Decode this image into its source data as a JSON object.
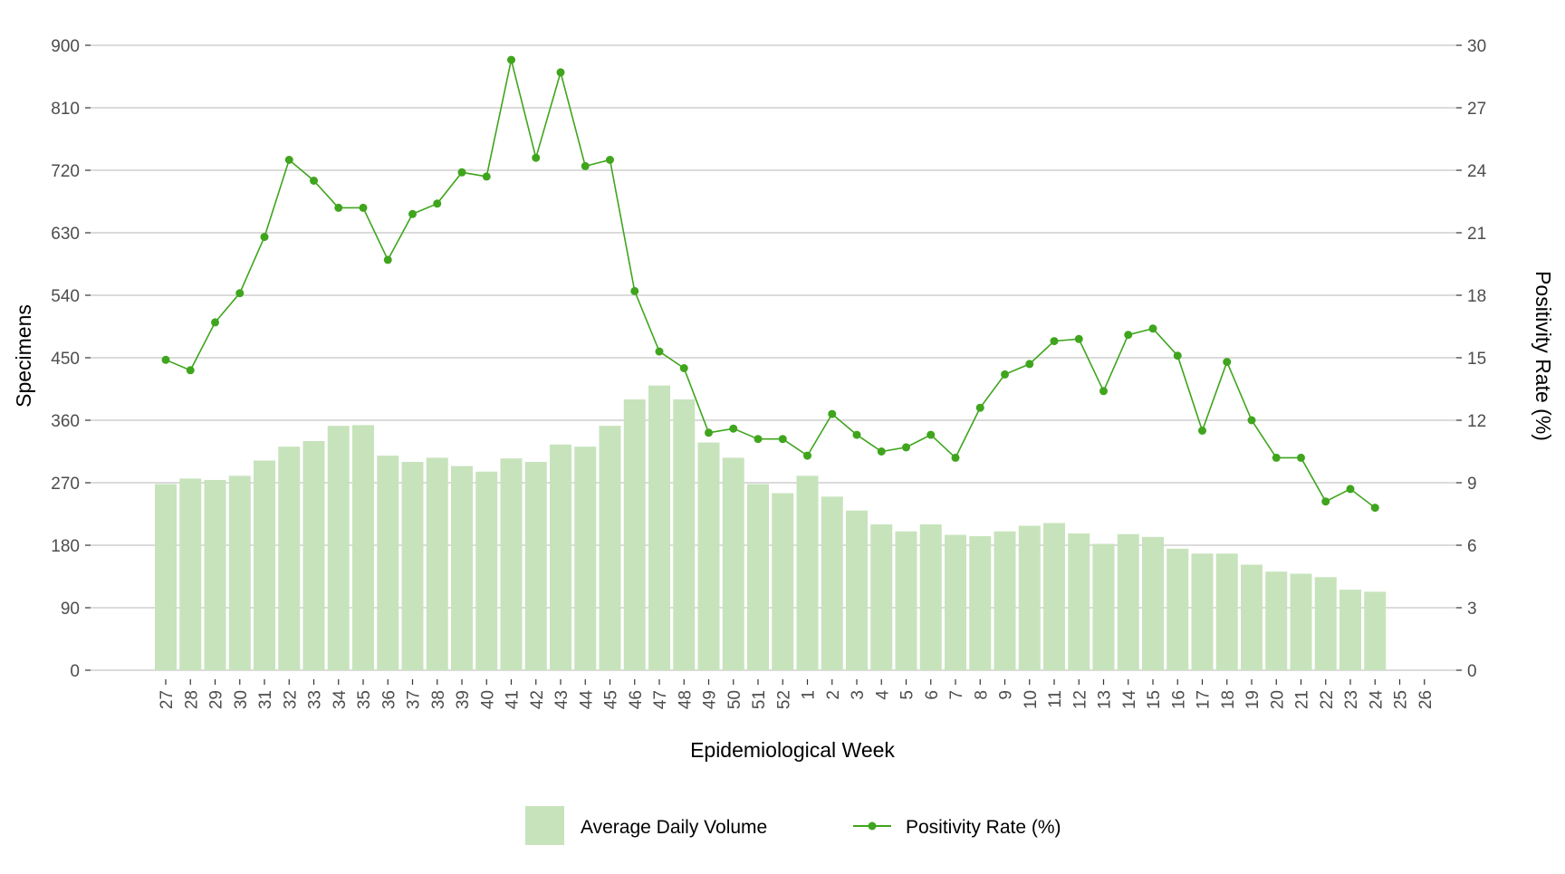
{
  "chart_data": {
    "type": "bar+line",
    "xlabel": "Epidemiological Week",
    "ylabel_left": "Specimens",
    "ylabel_right": "Positivity Rate (%)",
    "categories": [
      "27",
      "28",
      "29",
      "30",
      "31",
      "32",
      "33",
      "34",
      "35",
      "36",
      "37",
      "38",
      "39",
      "40",
      "41",
      "42",
      "43",
      "44",
      "45",
      "46",
      "47",
      "48",
      "49",
      "50",
      "51",
      "52",
      "1",
      "2",
      "3",
      "4",
      "5",
      "6",
      "7",
      "8",
      "9",
      "10",
      "11",
      "12",
      "13",
      "14",
      "15",
      "16",
      "17",
      "18",
      "19",
      "20",
      "21",
      "22",
      "23",
      "24",
      "25",
      "26"
    ],
    "ylim_left": [
      0,
      900
    ],
    "yticks_left": [
      0,
      90,
      180,
      270,
      360,
      450,
      540,
      630,
      720,
      810,
      900
    ],
    "ylim_right": [
      0,
      30
    ],
    "yticks_right": [
      0,
      3,
      6,
      9,
      12,
      15,
      18,
      21,
      24,
      27,
      30
    ],
    "grid": true,
    "legend_position": "bottom",
    "colors": {
      "bar": "#c7e3bc",
      "line": "#3fa51d",
      "grid": "#cfcfcf"
    },
    "series": [
      {
        "name": "Average Daily Volume",
        "kind": "bar",
        "axis": "left",
        "values": [
          268,
          276,
          274,
          280,
          302,
          322,
          330,
          352,
          353,
          309,
          300,
          306,
          294,
          286,
          305,
          300,
          325,
          322,
          352,
          390,
          410,
          390,
          328,
          306,
          268,
          255,
          280,
          250,
          230,
          210,
          200,
          210,
          195,
          193,
          200,
          208,
          212,
          197,
          182,
          196,
          192,
          175,
          168,
          168,
          152,
          142,
          139,
          134,
          116,
          113,
          null,
          null
        ]
      },
      {
        "name": "Positivity Rate (%)",
        "kind": "line",
        "axis": "right",
        "values": [
          14.9,
          14.4,
          16.7,
          18.1,
          20.8,
          24.5,
          23.5,
          22.2,
          22.2,
          19.7,
          21.9,
          22.4,
          23.9,
          23.7,
          29.3,
          24.6,
          28.7,
          24.2,
          24.5,
          18.2,
          15.3,
          14.5,
          11.4,
          11.6,
          11.1,
          11.1,
          10.3,
          12.3,
          11.3,
          10.5,
          10.7,
          11.3,
          10.2,
          12.6,
          14.2,
          14.7,
          15.8,
          15.9,
          13.4,
          16.1,
          16.4,
          15.1,
          11.5,
          14.8,
          12.0,
          10.2,
          10.2,
          8.1,
          8.7,
          7.8,
          null,
          null
        ]
      }
    ],
    "legend": [
      {
        "label": "Average Daily Volume",
        "kind": "bar"
      },
      {
        "label": "Positivity Rate (%)",
        "kind": "line"
      }
    ]
  }
}
